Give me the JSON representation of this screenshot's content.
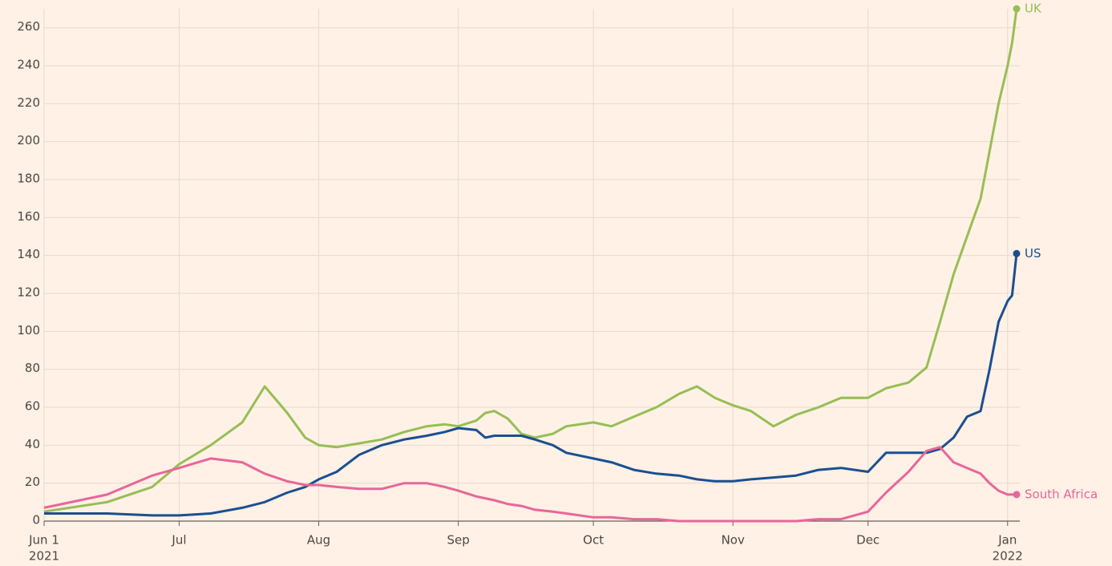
{
  "chart_data": {
    "type": "line",
    "x": [
      "2021-06-01",
      "2021-06-15",
      "2021-06-25",
      "2021-07-01",
      "2021-07-08",
      "2021-07-15",
      "2021-07-20",
      "2021-07-25",
      "2021-07-29",
      "2021-08-01",
      "2021-08-05",
      "2021-08-10",
      "2021-08-15",
      "2021-08-20",
      "2021-08-25",
      "2021-08-29",
      "2021-09-01",
      "2021-09-05",
      "2021-09-07",
      "2021-09-09",
      "2021-09-12",
      "2021-09-15",
      "2021-09-18",
      "2021-09-22",
      "2021-09-25",
      "2021-10-01",
      "2021-10-05",
      "2021-10-10",
      "2021-10-15",
      "2021-10-20",
      "2021-10-24",
      "2021-10-28",
      "2021-11-01",
      "2021-11-05",
      "2021-11-10",
      "2021-11-15",
      "2021-11-20",
      "2021-11-25",
      "2021-12-01",
      "2021-12-05",
      "2021-12-10",
      "2021-12-14",
      "2021-12-17",
      "2021-12-20",
      "2021-12-23",
      "2021-12-26",
      "2021-12-28",
      "2021-12-30",
      "2022-01-01",
      "2022-01-02",
      "2022-01-03"
    ],
    "series": [
      {
        "name": "UK",
        "color": "#96be55",
        "values": [
          5,
          10,
          18,
          30,
          40,
          52,
          71,
          57,
          44,
          40,
          39,
          41,
          43,
          47,
          50,
          51,
          50,
          53,
          57,
          58,
          54,
          46,
          44,
          46,
          50,
          52,
          50,
          55,
          60,
          67,
          71,
          65,
          61,
          58,
          50,
          56,
          60,
          65,
          65,
          70,
          73,
          81,
          105,
          130,
          150,
          170,
          195,
          220,
          240,
          252,
          270
        ]
      },
      {
        "name": "US",
        "color": "#1a4f91",
        "values": [
          4,
          4,
          3,
          3,
          4,
          7,
          10,
          15,
          18,
          22,
          26,
          35,
          40,
          43,
          45,
          47,
          49,
          48,
          44,
          45,
          45,
          45,
          43,
          40,
          36,
          33,
          31,
          27,
          25,
          24,
          22,
          21,
          21,
          22,
          23,
          24,
          27,
          28,
          26,
          36,
          36,
          36,
          38,
          44,
          55,
          58,
          80,
          105,
          116,
          119,
          141
        ]
      },
      {
        "name": "South Africa",
        "color": "#e8669a",
        "values": [
          7,
          14,
          24,
          28,
          33,
          31,
          25,
          21,
          19,
          19,
          18,
          17,
          17,
          20,
          20,
          18,
          16,
          13,
          12,
          11,
          9,
          8,
          6,
          5,
          4,
          2,
          2,
          1,
          1,
          0,
          0,
          0,
          0,
          0,
          0,
          0,
          1,
          1,
          5,
          15,
          26,
          37,
          39,
          31,
          28,
          25,
          20,
          16,
          14,
          14,
          14
        ]
      }
    ],
    "xlim": [
      "2021-06-01",
      "2022-01-03"
    ],
    "xticks": [
      {
        "value": "2021-06-01",
        "label": "Jun 1"
      },
      {
        "value": "2021-07-01",
        "label": "Jul"
      },
      {
        "value": "2021-08-01",
        "label": "Aug"
      },
      {
        "value": "2021-09-01",
        "label": "Sep"
      },
      {
        "value": "2021-10-01",
        "label": "Oct"
      },
      {
        "value": "2021-11-01",
        "label": "Nov"
      },
      {
        "value": "2021-12-01",
        "label": "Dec"
      },
      {
        "value": "2022-01-01",
        "label": "Jan"
      }
    ],
    "xtick_years": [
      {
        "value": "2021-06-01",
        "label": "2021"
      },
      {
        "value": "2022-01-01",
        "label": "2022"
      }
    ],
    "ylim": [
      0,
      270
    ],
    "yticks": [
      0,
      20,
      40,
      60,
      80,
      100,
      120,
      140,
      160,
      180,
      200,
      220,
      240,
      260
    ],
    "grid": true
  }
}
